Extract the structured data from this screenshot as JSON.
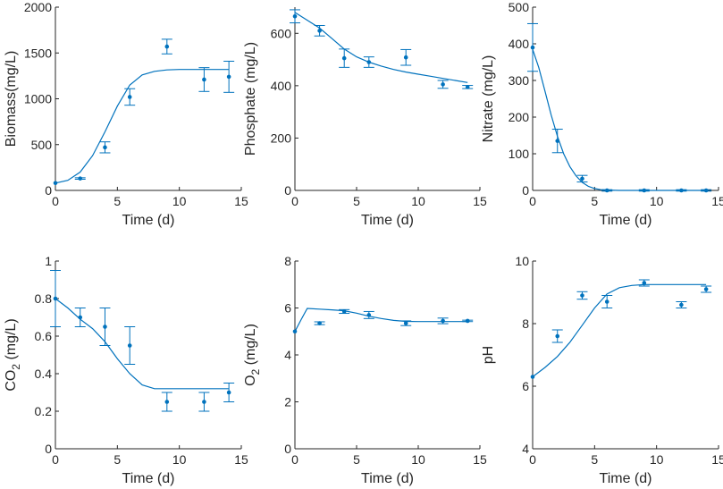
{
  "colors": {
    "series": "#0072BD",
    "axis": "#262626"
  },
  "chart_data": [
    {
      "type": "line",
      "xlabel": "Time (d)",
      "ylabel": "Biomass(mg/L)",
      "xlim": [
        0,
        15
      ],
      "ylim": [
        0,
        2000
      ],
      "xticks": [
        "0",
        "5",
        "10",
        "15"
      ],
      "yticks": [
        "0",
        "500",
        "1000",
        "1500",
        "2000"
      ],
      "points": [
        {
          "x": 0,
          "y": 80,
          "err": 0
        },
        {
          "x": 2,
          "y": 130,
          "err": 8
        },
        {
          "x": 4,
          "y": 470,
          "err": 60
        },
        {
          "x": 6,
          "y": 1020,
          "err": 90
        },
        {
          "x": 9,
          "y": 1570,
          "err": 80
        },
        {
          "x": 12,
          "y": 1210,
          "err": 130
        },
        {
          "x": 14,
          "y": 1240,
          "err": 170
        }
      ],
      "model": {
        "x": [
          0,
          1,
          2,
          3,
          4,
          5,
          6,
          7,
          8,
          9,
          10,
          11,
          12,
          13,
          14
        ],
        "y": [
          80,
          110,
          200,
          380,
          640,
          920,
          1150,
          1260,
          1300,
          1315,
          1320,
          1320,
          1320,
          1320,
          1320
        ]
      }
    },
    {
      "type": "line",
      "xlabel": "Time (d)",
      "ylabel": "Phosphate (mg/L)",
      "xlim": [
        0,
        15
      ],
      "ylim": [
        0,
        700
      ],
      "xticks": [
        "0",
        "5",
        "10",
        "15"
      ],
      "yticks": [
        "0",
        "200",
        "400",
        "600"
      ],
      "points": [
        {
          "x": 0,
          "y": 665,
          "err": 25
        },
        {
          "x": 2,
          "y": 610,
          "err": 20
        },
        {
          "x": 4,
          "y": 505,
          "err": 35
        },
        {
          "x": 6,
          "y": 490,
          "err": 20
        },
        {
          "x": 9,
          "y": 508,
          "err": 30
        },
        {
          "x": 12,
          "y": 405,
          "err": 15
        },
        {
          "x": 14,
          "y": 395,
          "err": 6
        }
      ],
      "model": {
        "x": [
          0,
          1,
          2,
          3,
          4,
          5,
          6,
          7,
          8,
          9,
          10,
          11,
          12,
          13,
          14
        ],
        "y": [
          680,
          650,
          620,
          580,
          540,
          510,
          490,
          475,
          462,
          452,
          444,
          436,
          428,
          420,
          412
        ]
      }
    },
    {
      "type": "line",
      "xlabel": "Time (d)",
      "ylabel": "Nitrate (mg/L)",
      "xlim": [
        0,
        15
      ],
      "ylim": [
        0,
        500
      ],
      "xticks": [
        "0",
        "5",
        "10",
        "15"
      ],
      "yticks": [
        "0",
        "100",
        "200",
        "300",
        "400",
        "500"
      ],
      "points": [
        {
          "x": 0,
          "y": 390,
          "err": 65
        },
        {
          "x": 2,
          "y": 135,
          "err": 32
        },
        {
          "x": 4,
          "y": 32,
          "err": 9
        },
        {
          "x": 6,
          "y": 0,
          "err": 2
        },
        {
          "x": 9,
          "y": 0,
          "err": 2
        },
        {
          "x": 12,
          "y": 0,
          "err": 2
        },
        {
          "x": 14,
          "y": 0,
          "err": 2
        }
      ],
      "model": {
        "x": [
          0,
          0.5,
          1,
          1.5,
          2,
          2.5,
          3,
          3.5,
          4,
          4.5,
          5,
          5.5,
          6,
          7,
          8,
          10,
          14
        ],
        "y": [
          385,
          335,
          270,
          205,
          148,
          100,
          65,
          40,
          22,
          11,
          5,
          2,
          1,
          0,
          0,
          0,
          0
        ]
      }
    },
    {
      "type": "line",
      "xlabel": "Time (d)",
      "ylabel": "CO2 (mg/L)",
      "ylabel_main": "CO",
      "ylabel_sub": "2",
      "ylabel_rest": " (mg/L)",
      "xlim": [
        0,
        15
      ],
      "ylim": [
        0,
        1
      ],
      "xticks": [
        "0",
        "5",
        "10",
        "15"
      ],
      "yticks": [
        "0",
        "0.2",
        "0.4",
        "0.6",
        "0.8",
        "1"
      ],
      "points": [
        {
          "x": 0,
          "y": 0.8,
          "err": 0.15
        },
        {
          "x": 2,
          "y": 0.7,
          "err": 0.05
        },
        {
          "x": 4,
          "y": 0.65,
          "err": 0.1
        },
        {
          "x": 6,
          "y": 0.55,
          "err": 0.1
        },
        {
          "x": 9,
          "y": 0.25,
          "err": 0.05
        },
        {
          "x": 12,
          "y": 0.25,
          "err": 0.05
        },
        {
          "x": 14,
          "y": 0.3,
          "err": 0.05
        }
      ],
      "model": {
        "x": [
          0,
          1,
          2,
          3,
          4,
          5,
          6,
          7,
          8,
          9,
          10,
          11,
          12,
          13,
          14
        ],
        "y": [
          0.8,
          0.75,
          0.69,
          0.64,
          0.57,
          0.48,
          0.4,
          0.34,
          0.32,
          0.32,
          0.32,
          0.32,
          0.32,
          0.32,
          0.32
        ]
      }
    },
    {
      "type": "line",
      "xlabel": "Time (d)",
      "ylabel": "O2 (mg/L)",
      "ylabel_main": "O",
      "ylabel_sub": "2",
      "ylabel_rest": " (mg/L)",
      "xlim": [
        0,
        15
      ],
      "ylim": [
        0,
        8
      ],
      "xticks": [
        "0",
        "5",
        "10",
        "15"
      ],
      "yticks": [
        "0",
        "2",
        "4",
        "6",
        "8"
      ],
      "points": [
        {
          "x": 0,
          "y": 5.0,
          "err": 0
        },
        {
          "x": 2,
          "y": 5.35,
          "err": 0.06
        },
        {
          "x": 4,
          "y": 5.85,
          "err": 0.08
        },
        {
          "x": 6,
          "y": 5.7,
          "err": 0.15
        },
        {
          "x": 9,
          "y": 5.35,
          "err": 0.1
        },
        {
          "x": 12,
          "y": 5.45,
          "err": 0.12
        },
        {
          "x": 14,
          "y": 5.45,
          "err": 0.03
        }
      ],
      "model": {
        "x": [
          0,
          0.5,
          1,
          2,
          3,
          4,
          5,
          6,
          7,
          8,
          9,
          10,
          11,
          12,
          13,
          14
        ],
        "y": [
          5.0,
          5.5,
          5.98,
          5.95,
          5.92,
          5.88,
          5.78,
          5.65,
          5.55,
          5.47,
          5.43,
          5.42,
          5.42,
          5.42,
          5.42,
          5.42
        ]
      }
    },
    {
      "type": "line",
      "xlabel": "Time (d)",
      "ylabel": "pH",
      "xlim": [
        0,
        15
      ],
      "ylim": [
        4,
        10
      ],
      "xticks": [
        "0",
        "5",
        "10",
        "15"
      ],
      "yticks": [
        "4",
        "6",
        "8",
        "10"
      ],
      "points": [
        {
          "x": 0,
          "y": 6.3,
          "err": 0
        },
        {
          "x": 2,
          "y": 7.6,
          "err": 0.2
        },
        {
          "x": 4,
          "y": 8.9,
          "err": 0.12
        },
        {
          "x": 6,
          "y": 8.7,
          "err": 0.2
        },
        {
          "x": 9,
          "y": 9.3,
          "err": 0.1
        },
        {
          "x": 12,
          "y": 8.6,
          "err": 0.1
        },
        {
          "x": 14,
          "y": 9.1,
          "err": 0.1
        }
      ],
      "model": {
        "x": [
          0,
          1,
          2,
          3,
          4,
          5,
          6,
          7,
          8,
          9,
          10,
          11,
          12,
          13,
          14
        ],
        "y": [
          6.3,
          6.6,
          6.95,
          7.4,
          7.95,
          8.5,
          8.95,
          9.15,
          9.22,
          9.25,
          9.25,
          9.25,
          9.25,
          9.25,
          9.25
        ]
      }
    }
  ]
}
